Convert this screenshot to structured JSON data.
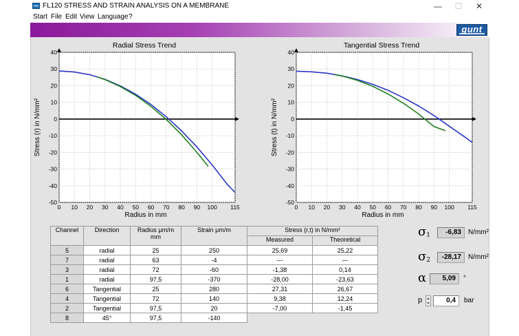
{
  "window": {
    "title": "FL120 STRESS AND STRAIN ANALYSIS ON A MEMBRANE",
    "minimize": "—",
    "maximize": "☐",
    "close": "✕"
  },
  "menu": [
    "Start",
    "File",
    "Edit",
    "View",
    "Language",
    "?"
  ],
  "logo_text": "gunt",
  "colors": {
    "banner_start": "#8a1a9a",
    "curve_blue": "#2b35c6",
    "curve_green": "#1f7f1f",
    "logo": "#1d5aa0"
  },
  "chart_data": [
    {
      "type": "line",
      "title": "Radial Stress Trend",
      "xlabel": "Radius in mm",
      "ylabel": "Stress (r)  in N/mm²",
      "xlim": [
        0,
        115
      ],
      "ylim": [
        -50,
        40
      ],
      "xticks": [
        0,
        10,
        20,
        30,
        40,
        50,
        60,
        70,
        80,
        90,
        100,
        115
      ],
      "yticks": [
        40,
        30,
        20,
        10,
        0,
        -10,
        -20,
        -30,
        -40,
        -50
      ],
      "grid": true,
      "series": [
        {
          "color": "blue",
          "x": [
            0,
            10,
            20,
            30,
            40,
            50,
            60,
            70,
            80,
            90,
            100,
            110,
            115
          ],
          "y": [
            28.8,
            28.2,
            26.6,
            23.8,
            19.9,
            14.9,
            8.7,
            1.4,
            -7.1,
            -16.7,
            -27.5,
            -39.3,
            -44
          ]
        },
        {
          "color": "green",
          "x": [
            25,
            30,
            40,
            50,
            60,
            70,
            80,
            90,
            97.5
          ],
          "y": [
            25.2,
            23.6,
            19.5,
            14.2,
            7.6,
            -0.2,
            -9.4,
            -19.9,
            -28.4
          ]
        }
      ]
    },
    {
      "type": "line",
      "title": "Tangential Stress Trend",
      "xlabel": "Radius in mm",
      "ylabel": "Stress (t)  in N/mm²",
      "xlim": [
        0,
        115
      ],
      "ylim": [
        -50,
        40
      ],
      "xticks": [
        0,
        10,
        20,
        30,
        40,
        50,
        60,
        70,
        80,
        90,
        100,
        115
      ],
      "yticks": [
        40,
        30,
        20,
        10,
        0,
        -10,
        -20,
        -30,
        -40,
        -50
      ],
      "grid": true,
      "series": [
        {
          "color": "blue",
          "x": [
            0,
            10,
            20,
            30,
            40,
            50,
            60,
            70,
            80,
            90,
            100,
            110,
            115
          ],
          "y": [
            28.7,
            28.3,
            27.5,
            25.9,
            23.7,
            20.8,
            17.2,
            12.8,
            7.8,
            2.1,
            -4.3,
            -10.7,
            -14
          ]
        },
        {
          "color": "green",
          "x": [
            25,
            30,
            40,
            50,
            60,
            70,
            80,
            90,
            97.5
          ],
          "y": [
            26.6,
            25.8,
            23.2,
            19.6,
            15.0,
            9.5,
            3.0,
            -4.5,
            -7.0
          ]
        }
      ]
    }
  ],
  "table": {
    "headers": {
      "channel": "Channel",
      "direction": "Direction",
      "radius": "Radius µm/m mm",
      "strain": "Strain µm/m",
      "stress": "Stress (r,t) in N/mm²",
      "measured": "Measured",
      "theoretical": "Theoretical"
    },
    "rows": [
      {
        "channel": "5",
        "direction": "radial",
        "radius": "25",
        "strain": "250",
        "measured": "25,69",
        "theoretical": "25,22"
      },
      {
        "channel": "7",
        "direction": "radial",
        "radius": "63",
        "strain": "-4",
        "measured": "---",
        "theoretical": "---"
      },
      {
        "channel": "3",
        "direction": "radial",
        "radius": "72",
        "strain": "-60",
        "measured": "-1,38",
        "theoretical": "0,14"
      },
      {
        "channel": "1",
        "direction": "radial",
        "radius": "97,5",
        "strain": "-370",
        "measured": "-28,00",
        "theoretical": "-23,63"
      },
      {
        "channel": "6",
        "direction": "Tangential",
        "radius": "25",
        "strain": "280",
        "measured": "27,31",
        "theoretical": "26,67"
      },
      {
        "channel": "4",
        "direction": "Tangential",
        "radius": "72",
        "strain": "140",
        "measured": "9,38",
        "theoretical": "12,24"
      },
      {
        "channel": "2",
        "direction": "Tangential",
        "radius": "97,5",
        "strain": "20",
        "measured": "-7,00",
        "theoretical": "-1,45"
      },
      {
        "channel": "8",
        "direction": "45°",
        "radius": "97,5",
        "strain": "-140",
        "measured": "",
        "theoretical": ""
      }
    ]
  },
  "results": {
    "sigma1": {
      "symbol": "σ",
      "sub": "1",
      "value": "-6,83",
      "unit": "N/mm²"
    },
    "sigma2": {
      "symbol": "σ",
      "sub": "2",
      "value": "-28,17",
      "unit": "N/mm²"
    },
    "alpha": {
      "symbol": "α",
      "value": "5,09",
      "unit": "°"
    },
    "pressure": {
      "label": "p",
      "value": "0,4",
      "unit": "bar"
    }
  }
}
